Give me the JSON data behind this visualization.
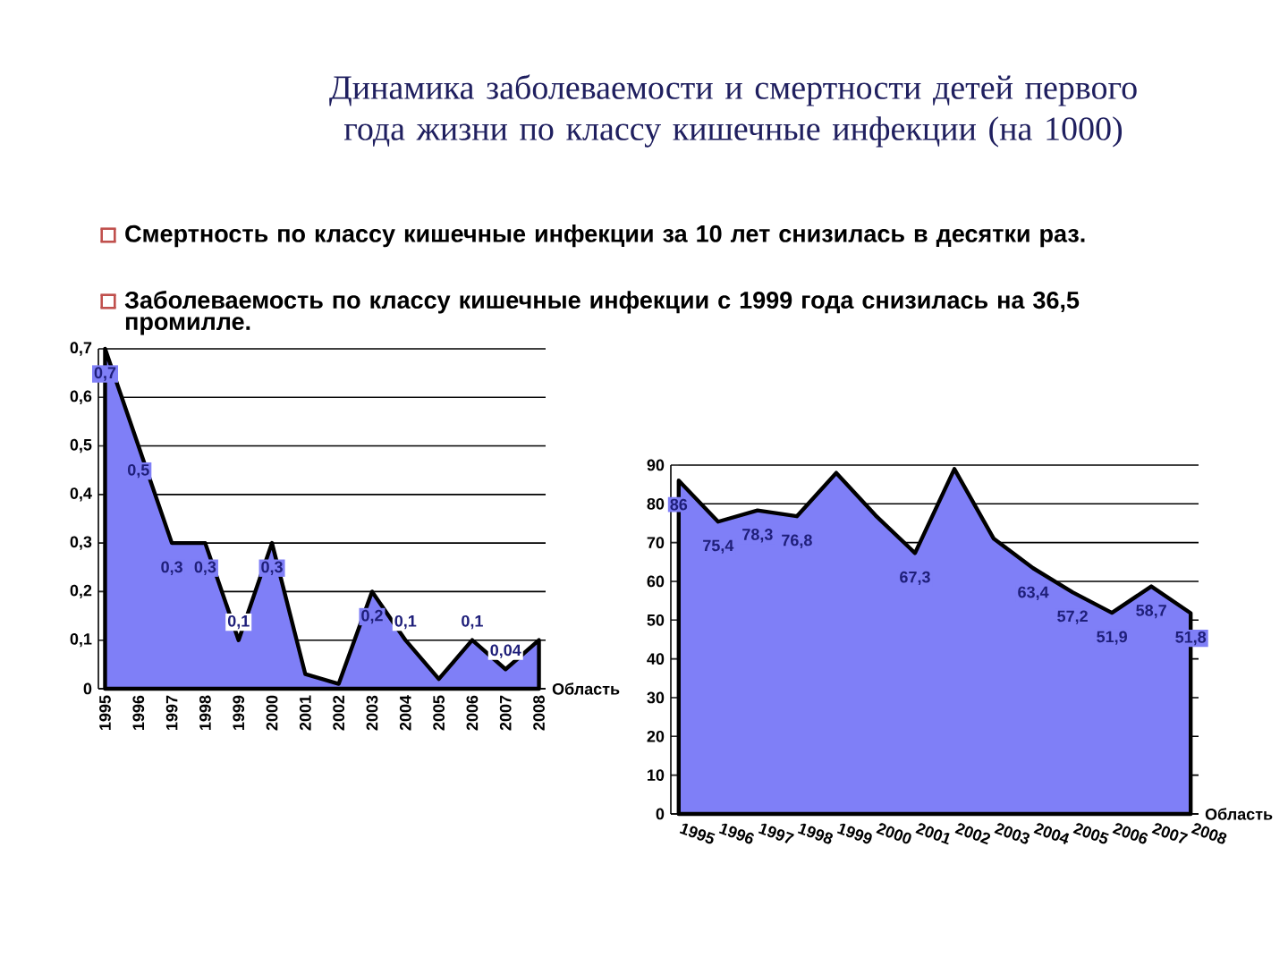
{
  "chart_data": [
    {
      "type": "area",
      "title": "Динамика заболеваемости и смертности детей первого года жизни по классу кишечные инфекции (на 1000)",
      "annotations": [
        "Смертность по классу кишечные инфекции за 10 лет снизилась в десятки раз.",
        "Заболеваемость по классу кишечные инфекции с 1999 года снизилась на 36,5 промилле."
      ],
      "categories": [
        "1995",
        "1996",
        "1997",
        "1998",
        "1999",
        "2000",
        "2001",
        "2002",
        "2003",
        "2004",
        "2005",
        "2006",
        "2007",
        "2008"
      ],
      "series": [
        {
          "name": "Область",
          "color": "#7f7ff7",
          "values": [
            0.7,
            0.5,
            0.3,
            0.3,
            0.1,
            0.3,
            0.03,
            0.01,
            0.2,
            0.1,
            0.02,
            0.1,
            0.04,
            0.1
          ],
          "value_labels": [
            "0,7",
            "0,5",
            "0,3",
            "0,3",
            "0,1",
            "0,3",
            null,
            null,
            "0,2",
            "0,1",
            null,
            "0,1",
            "0,04",
            null
          ]
        }
      ],
      "ylim": [
        0,
        0.7
      ],
      "yticks": [
        0,
        {
          "value": 0.1,
          "label": "0,1"
        },
        {
          "value": 0.2,
          "label": "0,2"
        },
        {
          "value": 0.3,
          "label": "0,3"
        },
        {
          "value": 0.4,
          "label": "0,4"
        },
        {
          "value": 0.5,
          "label": "0,5"
        },
        {
          "value": 0.6,
          "label": "0,6"
        },
        {
          "value": 0.7,
          "label": "0,7"
        }
      ],
      "grid": "y"
    },
    {
      "type": "area",
      "categories": [
        "1995",
        "1996",
        "1997",
        "1998",
        "1999",
        "2000",
        "2001",
        "2002",
        "2003",
        "2004",
        "2005",
        "2006",
        "2007",
        "2008"
      ],
      "series": [
        {
          "name": "Область",
          "color": "#7f7ff7",
          "values": [
            86,
            75.4,
            78.3,
            76.8,
            88,
            77,
            67.3,
            89,
            71,
            63.4,
            57.2,
            51.9,
            58.7,
            51.8
          ],
          "value_labels": [
            "86",
            "75,4",
            "78,3",
            "76,8",
            null,
            null,
            "67,3",
            null,
            null,
            "63,4",
            "57,2",
            "51,9",
            "58,7",
            "51,8"
          ]
        }
      ],
      "ylim": [
        0,
        90
      ],
      "yticks": [
        0,
        10,
        20,
        30,
        40,
        50,
        60,
        70,
        80,
        90
      ],
      "grid": "y"
    }
  ]
}
